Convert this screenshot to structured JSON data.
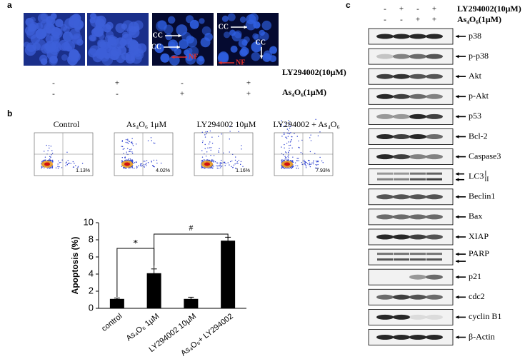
{
  "panel_a": {
    "label": "a",
    "image_annotations": [
      [
        "CC",
        "CC",
        "NF"
      ],
      [
        "CC",
        "CC",
        "NF"
      ]
    ],
    "treatments": [
      {
        "name": "LY294002(10μM)",
        "signs": [
          "-",
          "+",
          "-",
          "+"
        ]
      },
      {
        "name": "As₄O₆(1μM)",
        "signs": [
          "-",
          "-",
          "+",
          "+"
        ]
      }
    ]
  },
  "panel_b": {
    "label": "b",
    "flow_plots": [
      {
        "title": "Control",
        "percent": "1.13%"
      },
      {
        "title": "As₄O₆ 1μM",
        "percent": "4.02%"
      },
      {
        "title": "LY294002 10μM",
        "percent": "1.16%"
      },
      {
        "title": "LY294002 + As₄O₆",
        "percent": "7.93%"
      }
    ]
  },
  "chart_data": {
    "type": "bar",
    "ylabel": "Apoptosis (%)",
    "categories": [
      "control",
      "As₄O₆ 1μM",
      "LY294002 10μM",
      "As₄O₆+ LY294002"
    ],
    "values": [
      1.1,
      4.1,
      1.1,
      7.9
    ],
    "errors": [
      0.1,
      0.5,
      0.2,
      0.4
    ],
    "ylim": [
      0,
      10
    ],
    "yticks": [
      0,
      2,
      4,
      6,
      8,
      10
    ],
    "color": "#000000",
    "annotations": [
      "*",
      "#"
    ]
  },
  "panel_c": {
    "label": "c",
    "treatments": [
      {
        "name": "LY294002(10μM)",
        "signs": [
          "-",
          "+",
          "-",
          "+"
        ]
      },
      {
        "name": "As₄O₆(1μM)",
        "signs": [
          "-",
          "-",
          "+",
          "+"
        ]
      }
    ],
    "blots": [
      {
        "name": "p38"
      },
      {
        "name": "p-p38"
      },
      {
        "name": "Akt"
      },
      {
        "name": "p-Akt"
      },
      {
        "name": "p53"
      },
      {
        "name": "Bcl-2"
      },
      {
        "name": "Caspase3"
      },
      {
        "name": "LC3",
        "forms": [
          "I",
          "II"
        ]
      },
      {
        "name": "Beclin1"
      },
      {
        "name": "Bax"
      },
      {
        "name": "XIAP"
      },
      {
        "name": "PARP"
      },
      {
        "name": "p21"
      },
      {
        "name": "cdc2"
      },
      {
        "name": "cyclin B1"
      },
      {
        "name": "β-Actin"
      }
    ]
  }
}
